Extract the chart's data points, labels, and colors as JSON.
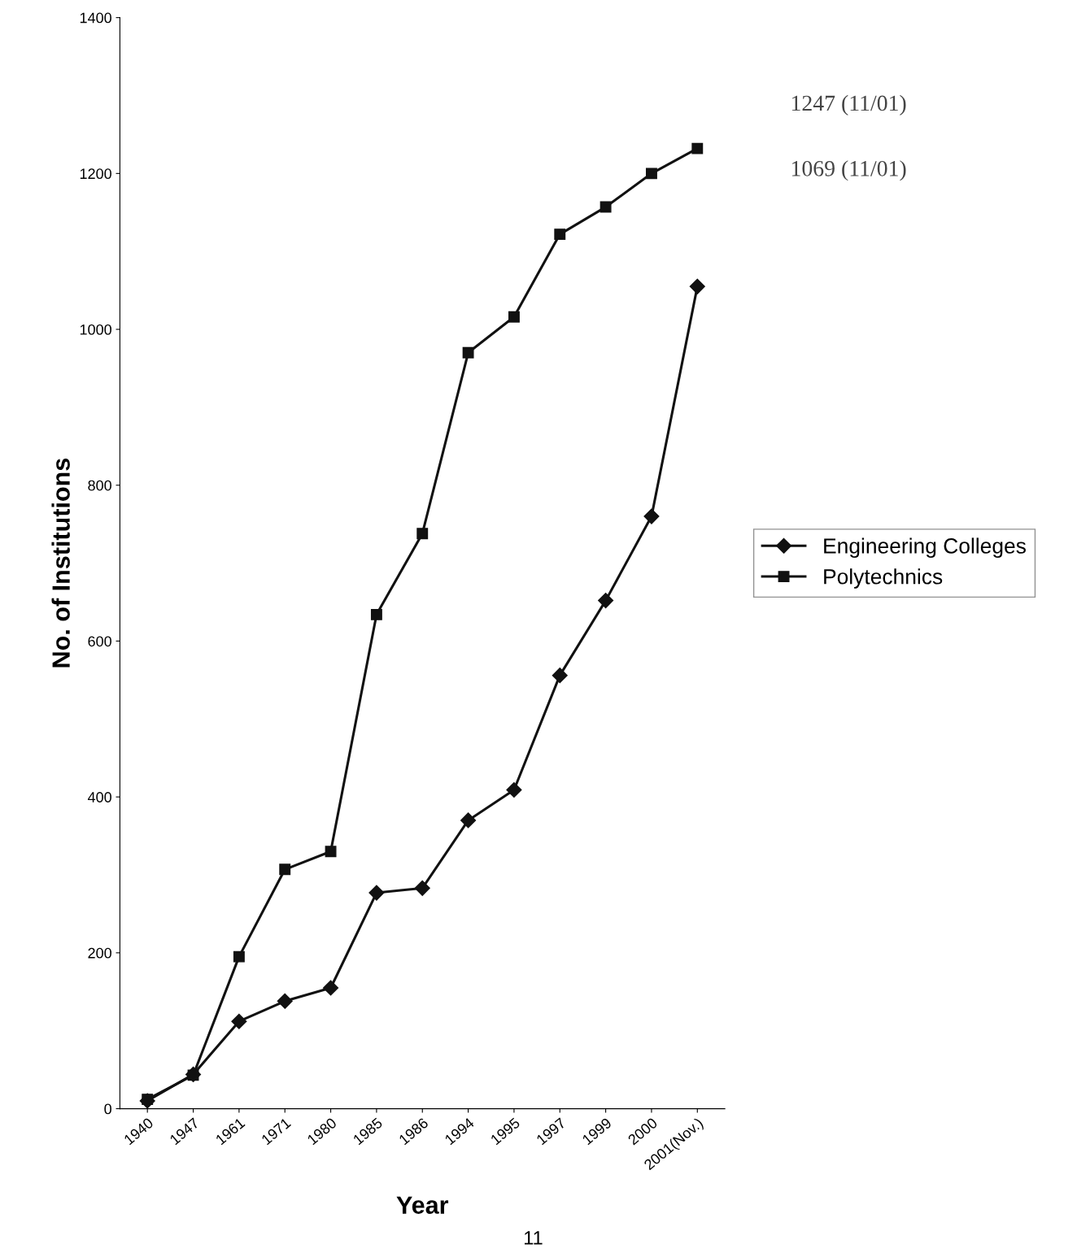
{
  "chart_data": {
    "type": "line",
    "xlabel": "Year",
    "ylabel": "No. of Institutions",
    "categories": [
      "1940",
      "1947",
      "1961",
      "1971",
      "1980",
      "1985",
      "1986",
      "1994",
      "1995",
      "1997",
      "1999",
      "2000",
      "2001(Nov.)"
    ],
    "series": [
      {
        "name": "Engineering Colleges",
        "color": "#111111",
        "marker": "diamond",
        "values": [
          10,
          44,
          112,
          138,
          155,
          277,
          283,
          370,
          409,
          556,
          652,
          760,
          1055
        ]
      },
      {
        "name": "Polytechnics",
        "color": "#111111",
        "marker": "square",
        "values": [
          12,
          43,
          195,
          307,
          330,
          634,
          738,
          970,
          1016,
          1122,
          1157,
          1200,
          1232
        ]
      }
    ],
    "ylim": [
      0,
      1400
    ],
    "yticks": [
      0,
      200,
      400,
      600,
      800,
      1000,
      1200,
      1400
    ],
    "annotations": [
      "1247 (11/01)",
      "1069 (11/01)",
      "11"
    ],
    "legend": "right",
    "grid": false,
    "line_style": "solid"
  }
}
